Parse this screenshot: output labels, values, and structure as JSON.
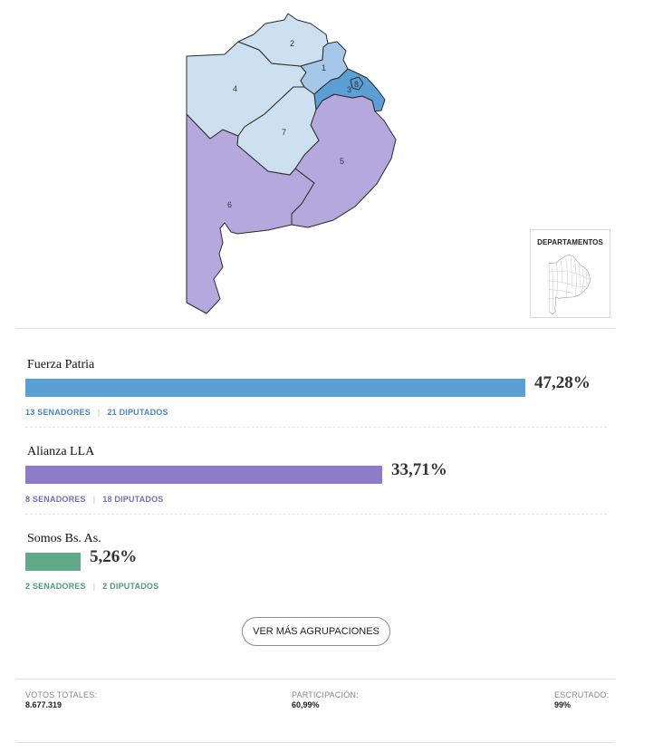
{
  "map": {
    "districts": [
      {
        "id": "1",
        "label": "1",
        "color": "#a6c8e8"
      },
      {
        "id": "2",
        "label": "2",
        "color": "#cde0ef"
      },
      {
        "id": "3",
        "label": "3",
        "color": "#5b9fd4"
      },
      {
        "id": "4",
        "label": "4",
        "color": "#cde0ef"
      },
      {
        "id": "5",
        "label": "5",
        "color": "#b4a8dc"
      },
      {
        "id": "6",
        "label": "6",
        "color": "#b4a8dc"
      },
      {
        "id": "7",
        "label": "7",
        "color": "#cde0ef"
      },
      {
        "id": "8",
        "label": "8",
        "color": "#5b9fd4"
      }
    ],
    "departments_button": "DEPARTAMENTOS"
  },
  "results": {
    "parties": [
      {
        "name": "Fuerza Patria",
        "percent": 47.28,
        "percent_label": "47,28%",
        "color": "#5b9fd4",
        "senators": "13 SENADORES",
        "deputies": "21 DIPUTADOS",
        "seats_color": "#4a86c0"
      },
      {
        "name": "Alianza LLA",
        "percent": 33.71,
        "percent_label": "33,71%",
        "color": "#8d7dc9",
        "senators": "8 SENADORES",
        "deputies": "18 DIPUTADOS",
        "seats_color": "#7b6bb4"
      },
      {
        "name": "Somos Bs. As.",
        "percent": 5.26,
        "percent_label": "5,26%",
        "color": "#62a98a",
        "senators": "2 SENADORES",
        "deputies": "2 DIPUTADOS",
        "seats_color": "#4f9a78"
      }
    ],
    "more_button": "VER MÁS AGRUPACIONES"
  },
  "stats": {
    "total_votes": {
      "label": "VOTOS TOTALES:",
      "value": "8.677.319"
    },
    "participation": {
      "label": "PARTICIPACIÓN:",
      "value": "60,99%"
    },
    "counted": {
      "label": "ESCRUTADO:",
      "value": "99%"
    }
  }
}
